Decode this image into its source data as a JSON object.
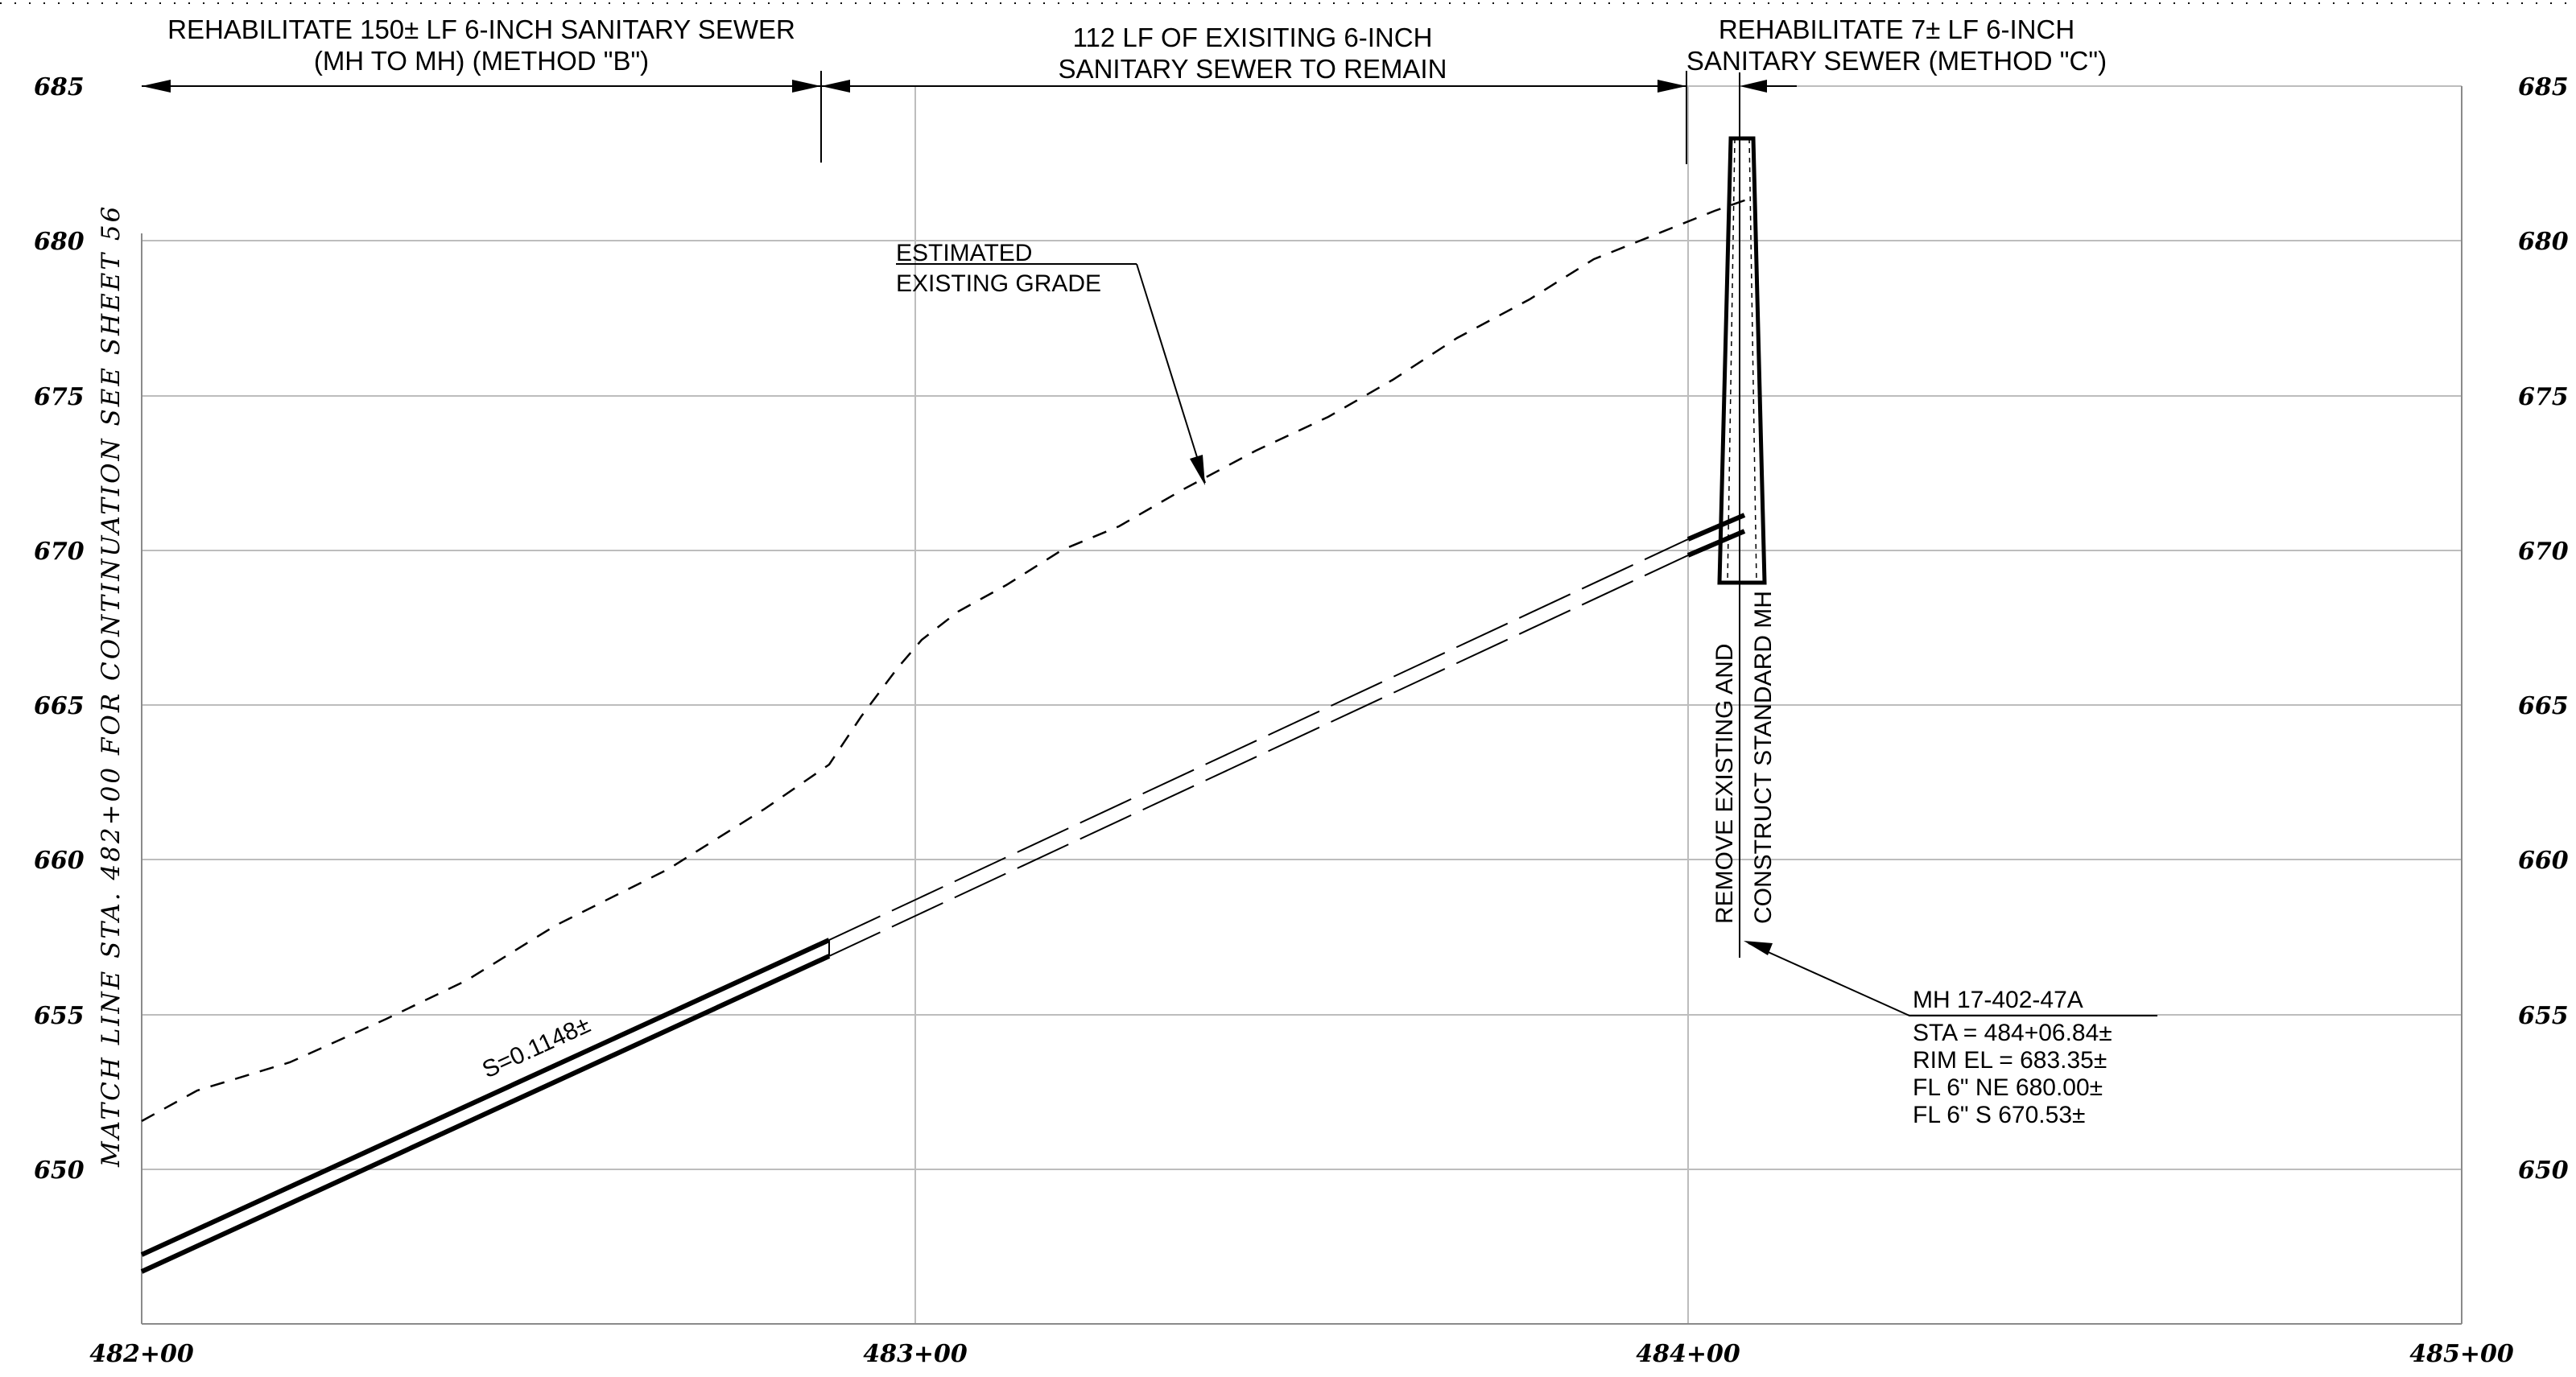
{
  "drawing": {
    "match_line_note": "MATCH LINE STA. 482+00  FOR CONTINUATION SEE SHEET 56",
    "elevation_labels": [
      "685",
      "680",
      "675",
      "670",
      "665",
      "660",
      "655",
      "650"
    ],
    "station_labels": [
      "482+00",
      "483+00",
      "484+00",
      "485+00"
    ],
    "dimension_notes": {
      "method_b": [
        "REHABILITATE 150± LF 6-INCH SANITARY SEWER",
        "(MH TO MH) (METHOD \"B\")"
      ],
      "remain": [
        "112 LF OF EXISITING 6-INCH",
        "SANITARY SEWER TO REMAIN"
      ],
      "method_c": [
        "REHABILITATE 7± LF 6-INCH",
        "SANITARY SEWER (METHOD \"C\")"
      ]
    },
    "grade_label": [
      "ESTIMATED",
      "EXISTING GRADE"
    ],
    "slope_label": "S=0.1148±",
    "manhole_note": [
      "REMOVE EXISTING AND",
      "CONSTRUCT STANDARD MH"
    ],
    "manhole_callout": {
      "id": "MH 17-402-47A",
      "sta": "STA = 484+06.84±",
      "rim": "RIM EL = 683.35±",
      "fl_ne": "FL 6\" NE 680.00±",
      "fl_s": "FL 6\" S 670.53±"
    },
    "colors": {
      "linework": "#000000",
      "grid": "#bdbdbd",
      "background": "#ffffff"
    }
  }
}
